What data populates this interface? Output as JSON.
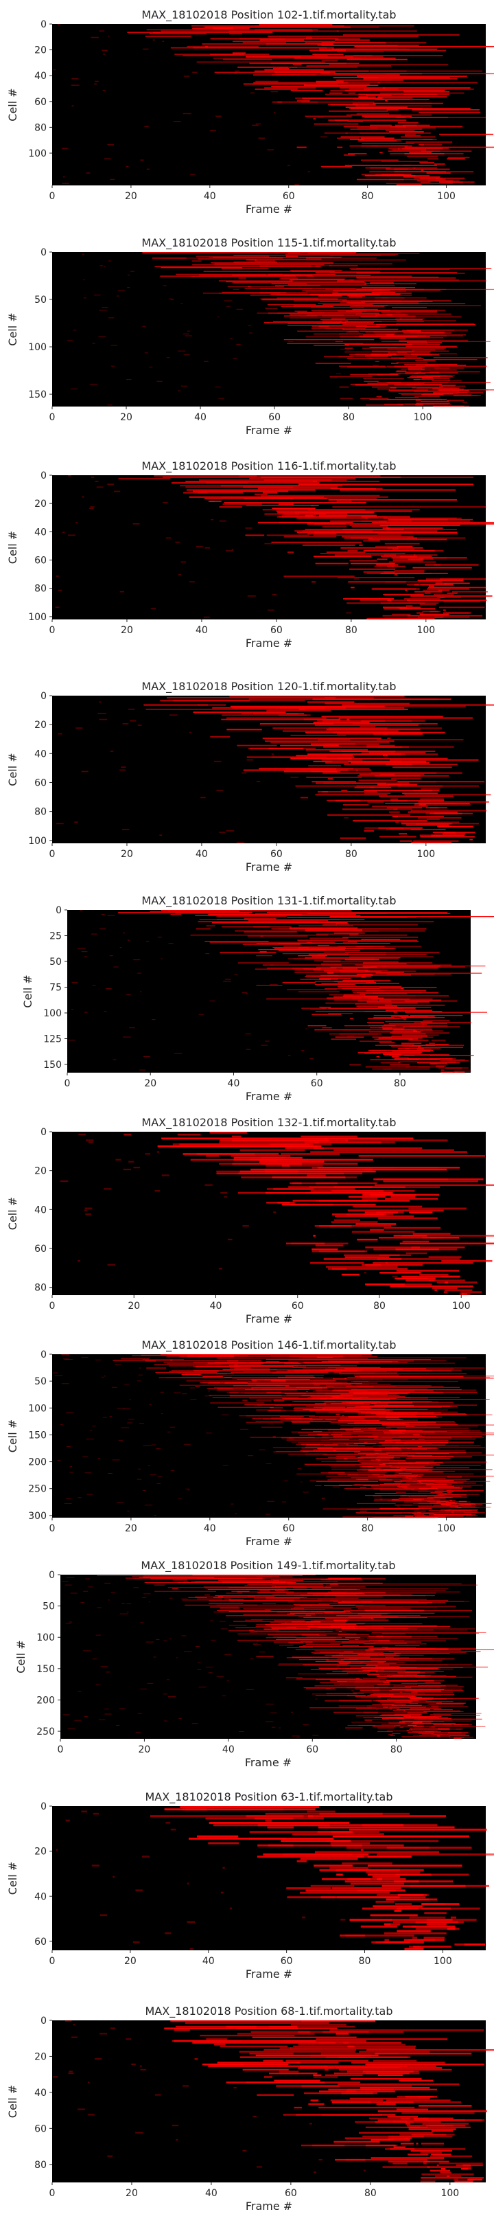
{
  "chart_data": [
    {
      "type": "heatmap",
      "title": "MAX_18102018 Position 102-1.tif.mortality.tab",
      "xlabel": "Frame #",
      "ylabel": "Cell #",
      "xlim": [
        0,
        110
      ],
      "ylim": [
        125,
        0
      ],
      "xticks": [
        0,
        20,
        40,
        60,
        80,
        100
      ],
      "yticks": [
        0,
        20,
        40,
        60,
        80,
        100
      ],
      "colors": {
        "background": "#000000",
        "signal": "#ff0000"
      },
      "grid": false
    },
    {
      "type": "heatmap",
      "title": "MAX_18102018 Position 115-1.tif.mortality.tab",
      "xlabel": "Frame #",
      "ylabel": "Cell #",
      "xlim": [
        0,
        117
      ],
      "ylim": [
        163,
        0
      ],
      "xticks": [
        0,
        20,
        40,
        60,
        80,
        100
      ],
      "yticks": [
        0,
        50,
        100,
        150
      ],
      "colors": {
        "background": "#000000",
        "signal": "#ff0000"
      },
      "grid": false
    },
    {
      "type": "heatmap",
      "title": "MAX_18102018 Position 116-1.tif.mortality.tab",
      "xlabel": "Frame #",
      "ylabel": "Cell #",
      "xlim": [
        0,
        116
      ],
      "ylim": [
        102,
        0
      ],
      "xticks": [
        0,
        20,
        40,
        60,
        80,
        100
      ],
      "yticks": [
        0,
        20,
        40,
        60,
        80,
        100
      ],
      "colors": {
        "background": "#000000",
        "signal": "#ff0000"
      },
      "grid": false
    },
    {
      "type": "heatmap",
      "title": "MAX_18102018 Position 120-1.tif.mortality.tab",
      "xlabel": "Frame #",
      "ylabel": "Cell #",
      "xlim": [
        0,
        116
      ],
      "ylim": [
        102,
        0
      ],
      "xticks": [
        0,
        20,
        40,
        60,
        80,
        100
      ],
      "yticks": [
        0,
        20,
        40,
        60,
        80,
        100
      ],
      "colors": {
        "background": "#000000",
        "signal": "#ff0000"
      },
      "grid": false
    },
    {
      "type": "heatmap",
      "title": "MAX_18102018 Position 131-1.tif.mortality.tab",
      "xlabel": "Frame #",
      "ylabel": "Cell #",
      "xlim": [
        0,
        97
      ],
      "ylim": [
        158,
        0
      ],
      "xticks": [
        0,
        20,
        40,
        60,
        80
      ],
      "yticks": [
        0,
        25,
        50,
        75,
        100,
        125,
        150
      ],
      "colors": {
        "background": "#000000",
        "signal": "#ff0000"
      },
      "grid": false
    },
    {
      "type": "heatmap",
      "title": "MAX_18102018 Position 132-1.tif.mortality.tab",
      "xlabel": "Frame #",
      "ylabel": "Cell #",
      "xlim": [
        0,
        106
      ],
      "ylim": [
        84,
        0
      ],
      "xticks": [
        0,
        20,
        40,
        60,
        80,
        100
      ],
      "yticks": [
        0,
        20,
        40,
        60,
        80
      ],
      "colors": {
        "background": "#000000",
        "signal": "#ff0000"
      },
      "grid": false
    },
    {
      "type": "heatmap",
      "title": "MAX_18102018 Position 146-1.tif.mortality.tab",
      "xlabel": "Frame #",
      "ylabel": "Cell #",
      "xlim": [
        0,
        110
      ],
      "ylim": [
        304,
        0
      ],
      "xticks": [
        0,
        20,
        40,
        60,
        80,
        100
      ],
      "yticks": [
        0,
        50,
        100,
        150,
        200,
        250,
        300
      ],
      "colors": {
        "background": "#000000",
        "signal": "#ff0000"
      },
      "grid": false
    },
    {
      "type": "heatmap",
      "title": "MAX_18102018 Position 149-1.tif.mortality.tab",
      "xlabel": "Frame #",
      "ylabel": "Cell #",
      "xlim": [
        0,
        99
      ],
      "ylim": [
        262,
        0
      ],
      "xticks": [
        0,
        20,
        40,
        60,
        80
      ],
      "yticks": [
        0,
        50,
        100,
        150,
        200,
        250
      ],
      "colors": {
        "background": "#000000",
        "signal": "#ff0000"
      },
      "grid": false
    },
    {
      "type": "heatmap",
      "title": "MAX_18102018 Position 63-1.tif.mortality.tab",
      "xlabel": "Frame #",
      "ylabel": "Cell #",
      "xlim": [
        0,
        111
      ],
      "ylim": [
        64,
        0
      ],
      "xticks": [
        0,
        20,
        40,
        60,
        80,
        100
      ],
      "yticks": [
        0,
        20,
        40,
        60
      ],
      "colors": {
        "background": "#000000",
        "signal": "#ff0000"
      },
      "grid": false
    },
    {
      "type": "heatmap",
      "title": "MAX_18102018 Position 68-1.tif.mortality.tab",
      "xlabel": "Frame #",
      "ylabel": "Cell #",
      "xlim": [
        0,
        109
      ],
      "ylim": [
        90,
        0
      ],
      "xticks": [
        0,
        20,
        40,
        60,
        80,
        100
      ],
      "yticks": [
        0,
        20,
        40,
        60,
        80
      ],
      "colors": {
        "background": "#000000",
        "signal": "#ff0000"
      },
      "grid": false
    }
  ]
}
